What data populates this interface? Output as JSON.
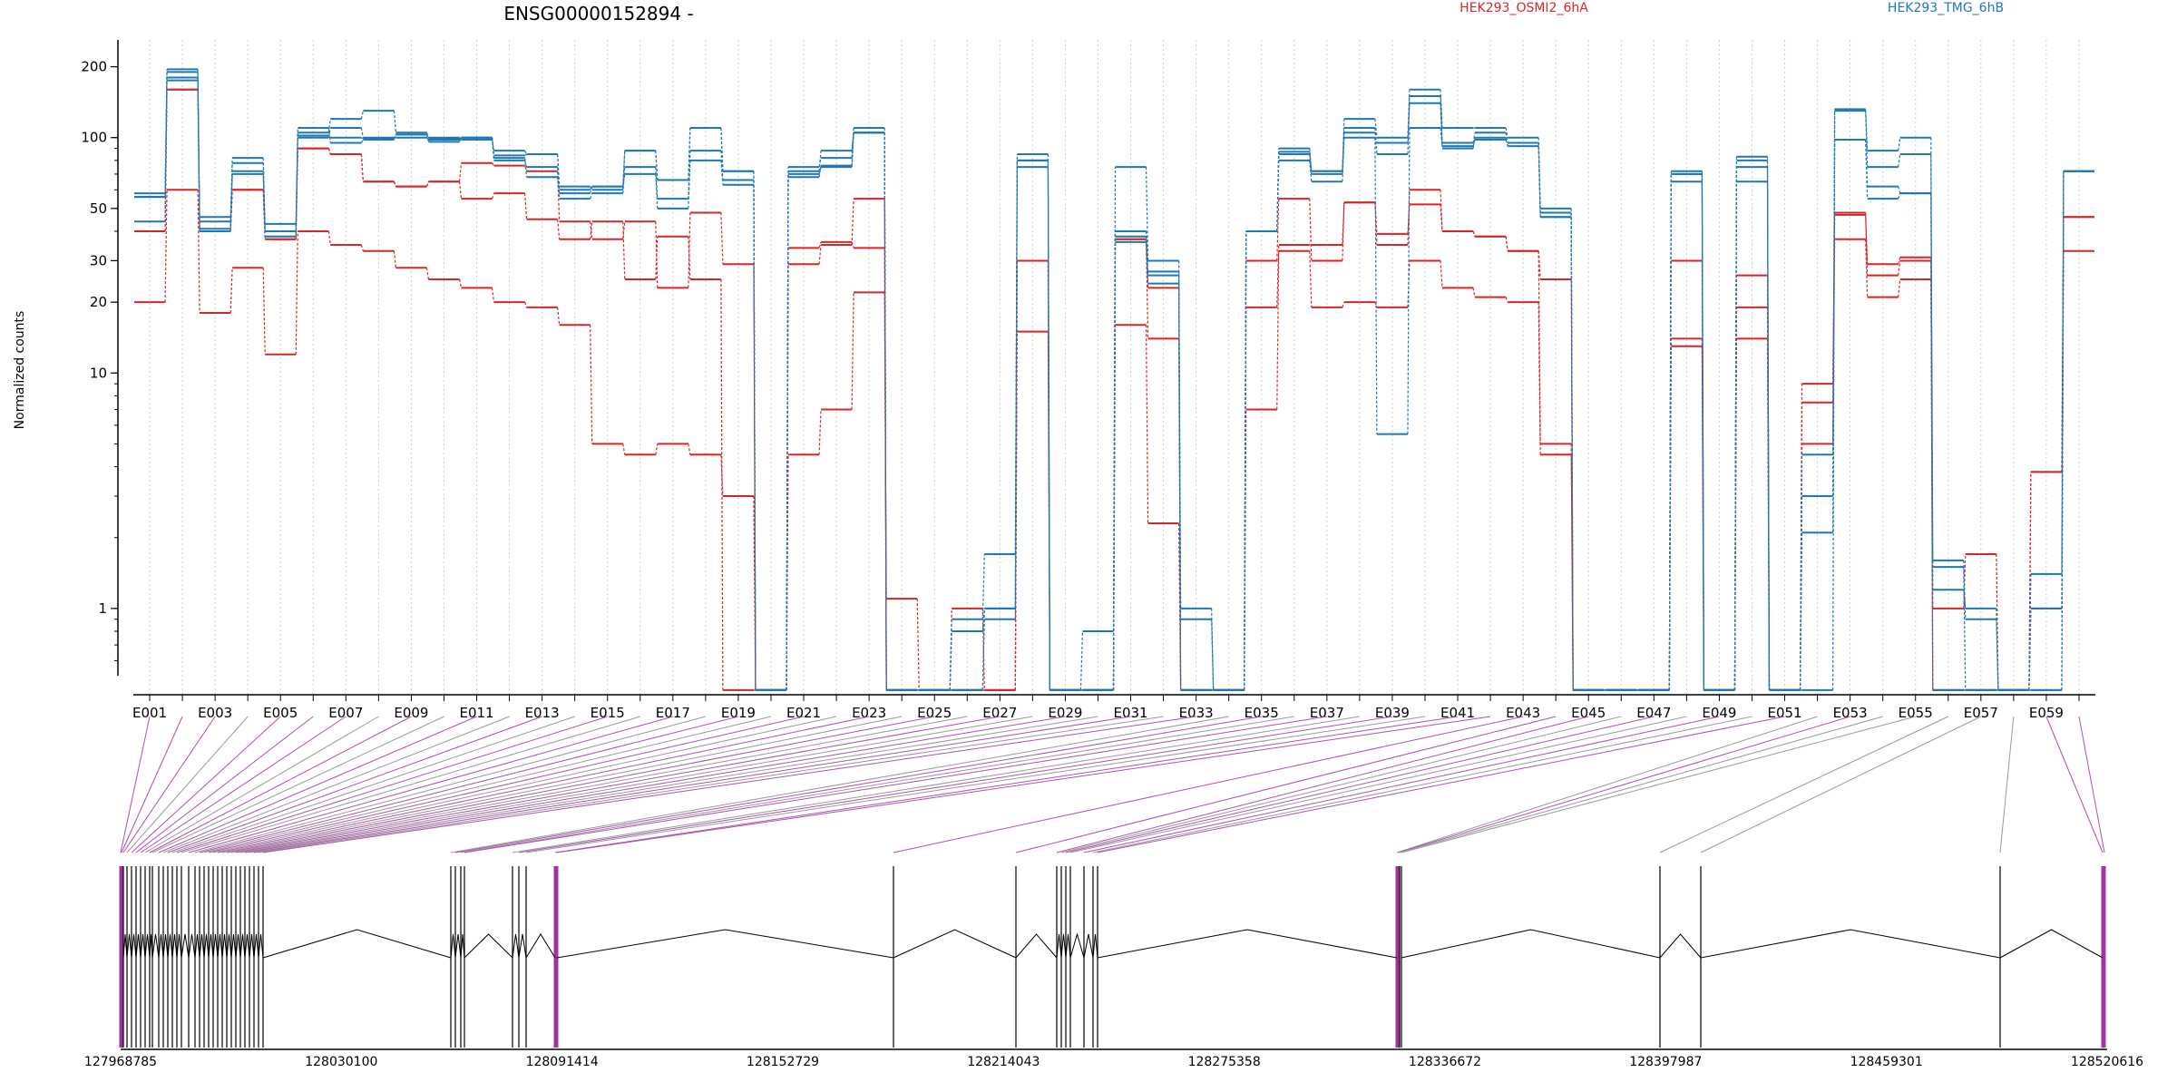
{
  "chart_data": {
    "type": "line",
    "title": "ENSG00000152894 -",
    "ylabel": "Normalized counts",
    "xlabel": "",
    "yscale": "log",
    "ylim": [
      0.43,
      260
    ],
    "yticks": [
      1,
      10,
      20,
      30,
      50,
      100,
      200
    ],
    "ytick_labels": [
      "1",
      "10",
      "20",
      "30",
      "50",
      "100",
      "200"
    ],
    "grid": "vertical dotted lines at each exon",
    "legend": [
      {
        "name": "HEK293_OSMI2_6hA",
        "color": "#d62728"
      },
      {
        "name": "HEK293_TMG_6hB",
        "color": "#1f77b4"
      }
    ],
    "colors": {
      "condA": "#d62728",
      "condB": "#1f77b4",
      "purple": "#a033a0",
      "grey": "#888888"
    },
    "zero_floor": 0.45,
    "exons": [
      "E001",
      "E002",
      "E003",
      "E004",
      "E005",
      "E006",
      "E007",
      "E008",
      "E009",
      "E010",
      "E011",
      "E012",
      "E013",
      "E014",
      "E015",
      "E016",
      "E017",
      "E018",
      "E019",
      "E020",
      "E021",
      "E022",
      "E023",
      "E024",
      "E025",
      "E026",
      "E027",
      "E028",
      "E029",
      "E030",
      "E031",
      "E032",
      "E033",
      "E034",
      "E035",
      "E036",
      "E037",
      "E038",
      "E039",
      "E040",
      "E041",
      "E042",
      "E043",
      "E044",
      "E045",
      "E046",
      "E047",
      "E048",
      "E049",
      "E050",
      "E051",
      "E052",
      "E053",
      "E054",
      "E055",
      "E056",
      "E057",
      "E058",
      "E059",
      "E060"
    ],
    "exon_tick_labels": [
      "E001",
      "E003",
      "E005",
      "E007",
      "E009",
      "E011",
      "E013",
      "E015",
      "E017",
      "E019",
      "E021",
      "E023",
      "E025",
      "E027",
      "E029",
      "E031",
      "E033",
      "E035",
      "E037",
      "E039",
      "E041",
      "E043",
      "E045",
      "E047",
      "E049",
      "E051",
      "E053",
      "E055",
      "E057",
      "E059"
    ],
    "series": [
      {
        "color": "#d62728",
        "values": [
          40,
          160,
          40,
          60,
          37,
          90,
          85,
          65,
          62,
          65,
          78,
          76,
          72,
          44,
          37,
          44,
          23,
          48,
          29,
          0,
          29,
          35,
          55,
          0,
          0,
          0,
          0,
          30,
          0,
          0,
          37,
          23,
          0,
          0,
          19,
          35,
          35,
          53,
          35,
          60,
          40,
          38,
          33,
          5,
          0,
          0,
          0,
          13,
          0,
          19,
          0,
          7.5,
          47,
          26,
          30,
          0,
          0,
          0,
          3.8,
          46
        ]
      },
      {
        "color": "#d62728",
        "values": [
          20,
          60,
          18,
          28,
          12,
          40,
          35,
          33,
          28,
          25,
          23,
          20,
          19,
          16,
          5,
          4.5,
          5,
          4.5,
          3,
          0,
          4.5,
          7,
          22,
          1.1,
          0,
          1,
          0,
          15,
          0,
          0,
          16,
          2.3,
          0,
          0,
          7,
          33,
          19,
          20,
          19,
          30,
          23,
          21,
          20,
          4.5,
          0,
          0,
          0,
          14,
          0,
          14,
          0,
          5,
          37,
          21,
          25,
          1,
          1.7,
          0,
          1,
          33
        ]
      },
      {
        "color": "#d62728",
        "values": [
          40,
          160,
          40,
          60,
          37,
          90,
          85,
          65,
          62,
          65,
          55,
          58,
          45,
          37,
          44,
          25,
          38,
          25,
          0,
          0,
          34,
          36,
          34,
          0,
          0,
          0,
          0,
          30,
          0,
          0,
          37,
          14,
          0,
          0,
          30,
          55,
          30,
          53,
          39,
          52,
          40,
          38,
          33,
          25,
          0,
          0,
          0,
          30,
          0,
          26,
          0,
          9,
          48,
          29,
          31,
          0,
          0,
          0,
          3.8,
          46
        ]
      },
      {
        "color": "#1f77b4",
        "values": [
          56,
          180,
          44,
          72,
          40,
          105,
          120,
          130,
          105,
          100,
          98,
          88,
          85,
          62,
          60,
          88,
          66,
          110,
          72,
          0,
          75,
          82,
          110,
          0,
          0,
          0.8,
          1,
          85,
          0,
          0.8,
          75,
          30,
          1,
          0,
          40,
          90,
          72,
          120,
          100,
          160,
          110,
          110,
          100,
          48,
          0,
          0,
          0,
          72,
          0,
          83,
          0,
          0,
          132,
          88,
          100,
          0,
          0,
          0,
          0,
          72
        ]
      },
      {
        "color": "#1f77b4",
        "values": [
          44,
          175,
          46,
          78,
          43,
          100,
          110,
          100,
          100,
          98,
          100,
          80,
          75,
          55,
          58,
          75,
          55,
          88,
          66,
          0,
          70,
          75,
          105,
          0,
          0,
          0.9,
          1.7,
          80,
          0,
          0,
          36,
          24,
          0.9,
          0,
          40,
          85,
          70,
          110,
          85,
          150,
          95,
          105,
          95,
          50,
          0,
          0,
          0,
          70,
          0,
          80,
          0,
          2.1,
          130,
          75,
          85,
          1.6,
          0.9,
          0,
          0,
          72
        ]
      },
      {
        "color": "#1f77b4",
        "values": [
          58,
          195,
          40,
          82,
          38,
          110,
          95,
          98,
          103,
          96,
          100,
          82,
          68,
          58,
          62,
          70,
          50,
          80,
          63,
          0,
          68,
          76,
          105,
          0,
          0,
          0,
          1,
          75,
          0,
          0,
          40,
          26,
          0,
          0,
          40,
          80,
          65,
          100,
          5.5,
          110,
          92,
          98,
          92,
          46,
          0,
          0,
          0,
          65,
          0,
          65,
          0,
          3,
          98,
          55,
          58,
          1.2,
          1,
          0,
          1,
          72
        ]
      },
      {
        "color": "#1f77b4",
        "values": [
          56,
          190,
          41,
          70,
          40,
          102,
          100,
          99,
          103,
          99,
          100,
          84,
          85,
          60,
          62,
          88,
          66,
          110,
          72,
          0,
          72,
          88,
          105,
          0,
          0,
          0,
          0.9,
          80,
          0,
          0,
          38,
          27,
          0,
          0,
          40,
          87,
          72,
          105,
          95,
          140,
          90,
          100,
          95,
          46,
          0,
          0,
          0,
          70,
          0,
          75,
          0,
          4.5,
          98,
          62,
          58,
          1.5,
          0,
          0,
          1.4,
          72
        ]
      }
    ],
    "genome_axis": {
      "tick_labels": [
        "127968785",
        "128030100",
        "128091414",
        "128152729",
        "128214043",
        "128275358",
        "128336672",
        "128397987",
        "128459301",
        "128520616"
      ]
    }
  }
}
